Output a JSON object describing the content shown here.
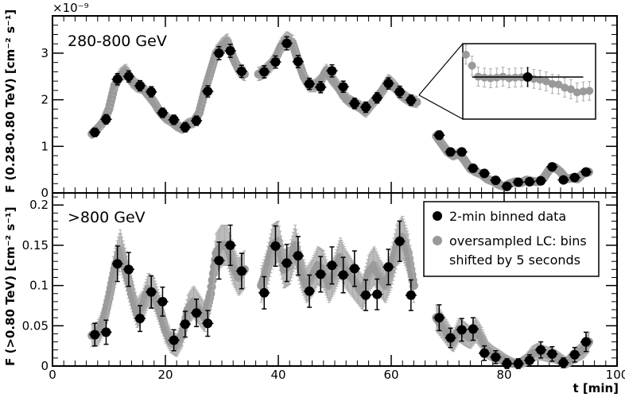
{
  "chart_data": [
    {
      "type": "scatter",
      "panel_label": "280-800 GeV",
      "ylabel": "F (0.28-0.80 TeV) [cm⁻² s⁻¹]",
      "multiplier": "×10⁻⁹",
      "xlim": [
        0,
        100
      ],
      "ylim": [
        0,
        3.8
      ],
      "yticks": [
        0,
        1,
        2,
        3
      ],
      "ytick_labels": [
        "0",
        "1",
        "2",
        "3"
      ],
      "binned": {
        "name": "2-min binned data",
        "x": [
          7.5,
          9.5,
          11.5,
          13.5,
          15.5,
          17.5,
          19.5,
          21.5,
          23.5,
          25.5,
          27.5,
          29.5,
          31.5,
          33.5,
          37.5,
          39.5,
          41.5,
          43.5,
          45.5,
          47.5,
          49.5,
          51.5,
          53.5,
          55.5,
          57.5,
          59.5,
          61.5,
          63.5,
          68.5,
          70.5,
          72.5,
          74.5,
          76.5,
          78.5,
          80.5,
          82.5,
          84.5,
          86.5,
          88.5,
          90.5,
          92.5,
          94.5
        ],
        "y": [
          1.3,
          1.58,
          2.44,
          2.5,
          2.3,
          2.17,
          1.72,
          1.57,
          1.41,
          1.55,
          2.18,
          3.0,
          3.05,
          2.61,
          2.6,
          2.81,
          3.21,
          2.82,
          2.34,
          2.27,
          2.62,
          2.28,
          1.92,
          1.84,
          2.04,
          2.35,
          2.17,
          1.99,
          1.24,
          0.88,
          0.88,
          0.53,
          0.42,
          0.27,
          0.14,
          0.23,
          0.24,
          0.26,
          0.56,
          0.28,
          0.33,
          0.45
        ],
        "err": [
          0.09,
          0.1,
          0.12,
          0.12,
          0.11,
          0.11,
          0.1,
          0.1,
          0.1,
          0.1,
          0.12,
          0.14,
          0.14,
          0.13,
          0.13,
          0.13,
          0.14,
          0.13,
          0.12,
          0.12,
          0.13,
          0.12,
          0.11,
          0.11,
          0.11,
          0.12,
          0.12,
          0.11,
          0.09,
          0.08,
          0.08,
          0.07,
          0.06,
          0.05,
          0.04,
          0.05,
          0.05,
          0.05,
          0.07,
          0.05,
          0.06,
          0.06
        ]
      },
      "oversampled": {
        "name": "oversampled LC: bins shifted by 5 seconds",
        "x": [
          7.0,
          8.0,
          9.0,
          10.0,
          11.0,
          12.0,
          13.0,
          14.0,
          15.0,
          16.0,
          17.0,
          18.0,
          19.0,
          20.0,
          21.0,
          22.0,
          23.0,
          24.0,
          25.0,
          26.0,
          27.0,
          28.0,
          29.0,
          30.0,
          31.0,
          32.0,
          33.0,
          34.0,
          36.5,
          37.5,
          38.5,
          39.5,
          40.5,
          41.5,
          42.5,
          43.5,
          44.5,
          45.5,
          46.5,
          47.5,
          48.5,
          49.5,
          50.5,
          51.5,
          52.5,
          53.5,
          54.5,
          55.5,
          56.5,
          57.5,
          58.5,
          59.5,
          60.5,
          61.5,
          62.5,
          63.5,
          64.5,
          68.0,
          69.0,
          70.0,
          71.0,
          72.0,
          73.0,
          74.0,
          75.0,
          76.0,
          77.0,
          78.0,
          79.0,
          80.0,
          81.0,
          82.0,
          83.0,
          84.0,
          85.0,
          86.0,
          87.0,
          88.0,
          89.0,
          90.0,
          91.0,
          92.0,
          93.0,
          94.0,
          95.0
        ],
        "y": [
          1.27,
          1.38,
          1.52,
          1.8,
          2.3,
          2.52,
          2.62,
          2.4,
          2.3,
          2.25,
          2.1,
          1.95,
          1.75,
          1.62,
          1.55,
          1.45,
          1.38,
          1.48,
          1.52,
          1.72,
          2.2,
          2.6,
          3.0,
          3.15,
          3.25,
          2.9,
          2.65,
          2.55,
          2.55,
          2.6,
          2.72,
          2.88,
          3.15,
          3.3,
          3.22,
          2.85,
          2.5,
          2.3,
          2.3,
          2.4,
          2.62,
          2.45,
          2.3,
          2.1,
          1.98,
          1.92,
          1.85,
          1.75,
          1.9,
          2.05,
          2.2,
          2.4,
          2.3,
          2.15,
          2.05,
          1.98,
          1.95,
          1.22,
          1.05,
          0.88,
          0.8,
          0.85,
          0.7,
          0.52,
          0.45,
          0.4,
          0.3,
          0.25,
          0.18,
          0.14,
          0.2,
          0.24,
          0.22,
          0.28,
          0.25,
          0.24,
          0.32,
          0.5,
          0.55,
          0.45,
          0.3,
          0.32,
          0.3,
          0.42,
          0.45
        ],
        "err": [
          0.1,
          0.1,
          0.11,
          0.12,
          0.13,
          0.14,
          0.14,
          0.13,
          0.13,
          0.12,
          0.12,
          0.12,
          0.11,
          0.11,
          0.11,
          0.11,
          0.1,
          0.11,
          0.11,
          0.12,
          0.13,
          0.14,
          0.15,
          0.16,
          0.16,
          0.15,
          0.14,
          0.14,
          0.14,
          0.14,
          0.14,
          0.15,
          0.16,
          0.16,
          0.16,
          0.15,
          0.14,
          0.13,
          0.13,
          0.14,
          0.14,
          0.14,
          0.13,
          0.13,
          0.12,
          0.12,
          0.12,
          0.12,
          0.12,
          0.12,
          0.13,
          0.14,
          0.13,
          0.13,
          0.12,
          0.12,
          0.12,
          0.1,
          0.1,
          0.09,
          0.09,
          0.09,
          0.08,
          0.07,
          0.07,
          0.07,
          0.06,
          0.06,
          0.05,
          0.05,
          0.05,
          0.06,
          0.05,
          0.06,
          0.06,
          0.06,
          0.06,
          0.07,
          0.08,
          0.07,
          0.06,
          0.06,
          0.06,
          0.07,
          0.07
        ]
      },
      "inset": {
        "note": "zoom of oversampled light curve around one 2-min bin",
        "x": [
          -1.0,
          -0.9,
          -0.8,
          -0.7,
          -0.6,
          -0.5,
          -0.4,
          -0.3,
          -0.2,
          -0.1,
          0.0,
          0.1,
          0.2,
          0.3,
          0.4,
          0.5,
          0.6,
          0.7,
          0.8,
          0.9,
          1.0
        ],
        "y": [
          3.35,
          3.0,
          2.65,
          2.62,
          2.6,
          2.62,
          2.65,
          2.6,
          2.62,
          2.63,
          2.64,
          2.58,
          2.55,
          2.5,
          2.42,
          2.4,
          2.3,
          2.25,
          2.15,
          2.18,
          2.2
        ],
        "err": [
          0.3,
          0.3,
          0.3,
          0.3,
          0.3,
          0.3,
          0.3,
          0.3,
          0.3,
          0.3,
          0.3,
          0.3,
          0.3,
          0.3,
          0.3,
          0.3,
          0.3,
          0.3,
          0.3,
          0.3,
          0.3
        ],
        "bin_y": 2.64,
        "bin_err": 0.32,
        "xlim": [
          -1.05,
          1.1
        ],
        "ylim": [
          1.3,
          3.7
        ],
        "source_x": 63.5,
        "source_y": 2.1
      }
    },
    {
      "type": "scatter",
      "panel_label": ">800 GeV",
      "ylabel": "F (>0.80 TeV) [cm⁻² s⁻¹]",
      "xlabel": "t [min]",
      "xlim": [
        0,
        100
      ],
      "ylim": [
        0,
        0.215
      ],
      "xticks": [
        0,
        20,
        40,
        60,
        80,
        100
      ],
      "xtick_labels": [
        "0",
        "20",
        "40",
        "60",
        "80",
        "100"
      ],
      "yticks": [
        0,
        0.05,
        0.1,
        0.15,
        0.2
      ],
      "ytick_labels": [
        "0",
        "0.05",
        "0.1",
        "0.15",
        "0.2"
      ],
      "legend_position": "top-right",
      "binned": {
        "name": "2-min binned data",
        "x": [
          7.5,
          9.5,
          11.5,
          13.5,
          15.5,
          17.5,
          19.5,
          21.5,
          23.5,
          25.5,
          27.5,
          29.5,
          31.5,
          33.5,
          37.5,
          39.5,
          41.5,
          43.5,
          45.5,
          47.5,
          49.5,
          51.5,
          53.5,
          55.5,
          57.5,
          59.5,
          61.5,
          63.5,
          68.5,
          70.5,
          72.5,
          74.5,
          76.5,
          78.5,
          80.5,
          82.5,
          84.5,
          86.5,
          88.5,
          90.5,
          92.5,
          94.5
        ],
        "y": [
          0.039,
          0.042,
          0.127,
          0.12,
          0.059,
          0.092,
          0.08,
          0.032,
          0.052,
          0.066,
          0.053,
          0.131,
          0.15,
          0.118,
          0.091,
          0.149,
          0.128,
          0.137,
          0.093,
          0.114,
          0.125,
          0.113,
          0.121,
          0.088,
          0.089,
          0.123,
          0.155,
          0.088,
          0.06,
          0.035,
          0.045,
          0.046,
          0.016,
          0.011,
          0.003,
          0.003,
          0.007,
          0.02,
          0.015,
          0.004,
          0.014,
          0.03
        ],
        "err": [
          0.014,
          0.015,
          0.022,
          0.021,
          0.016,
          0.02,
          0.018,
          0.013,
          0.016,
          0.017,
          0.016,
          0.023,
          0.025,
          0.022,
          0.02,
          0.025,
          0.023,
          0.024,
          0.02,
          0.022,
          0.023,
          0.022,
          0.022,
          0.019,
          0.019,
          0.022,
          0.025,
          0.019,
          0.016,
          0.012,
          0.014,
          0.014,
          0.009,
          0.008,
          0.006,
          0.006,
          0.007,
          0.01,
          0.009,
          0.006,
          0.009,
          0.012
        ]
      },
      "oversampled": {
        "name": "oversampled LC: bins shifted by 5 seconds",
        "x": [
          7.0,
          8.0,
          9.0,
          10.0,
          11.0,
          12.0,
          13.0,
          14.0,
          15.0,
          16.0,
          17.0,
          18.0,
          19.0,
          20.0,
          21.0,
          22.0,
          23.0,
          24.0,
          25.0,
          26.0,
          27.0,
          28.0,
          29.0,
          30.0,
          31.0,
          32.0,
          33.0,
          34.0,
          37.0,
          38.0,
          39.0,
          40.0,
          41.0,
          42.0,
          43.0,
          44.0,
          45.0,
          46.0,
          47.0,
          48.0,
          49.0,
          50.0,
          51.0,
          52.0,
          53.0,
          54.0,
          55.0,
          56.0,
          57.0,
          58.0,
          59.0,
          60.0,
          61.0,
          62.0,
          63.0,
          64.0,
          68.0,
          69.0,
          70.0,
          71.0,
          72.0,
          73.0,
          74.0,
          75.0,
          76.0,
          77.0,
          78.0,
          79.0,
          80.0,
          81.0,
          82.0,
          83.0,
          84.0,
          85.0,
          86.0,
          87.0,
          88.0,
          89.0,
          90.0,
          91.0,
          92.0,
          93.0,
          94.0,
          95.0
        ],
        "y": [
          0.038,
          0.04,
          0.055,
          0.085,
          0.12,
          0.145,
          0.12,
          0.09,
          0.065,
          0.075,
          0.095,
          0.09,
          0.07,
          0.045,
          0.03,
          0.025,
          0.04,
          0.07,
          0.08,
          0.07,
          0.06,
          0.09,
          0.14,
          0.15,
          0.15,
          0.125,
          0.11,
          0.12,
          0.1,
          0.12,
          0.15,
          0.155,
          0.12,
          0.125,
          0.15,
          0.12,
          0.1,
          0.11,
          0.125,
          0.12,
          0.1,
          0.115,
          0.135,
          0.12,
          0.11,
          0.1,
          0.09,
          0.115,
          0.125,
          0.11,
          0.1,
          0.12,
          0.15,
          0.16,
          0.14,
          0.1,
          0.06,
          0.05,
          0.04,
          0.03,
          0.045,
          0.04,
          0.035,
          0.045,
          0.035,
          0.02,
          0.015,
          0.012,
          0.008,
          0.005,
          0.003,
          0.004,
          0.008,
          0.015,
          0.018,
          0.016,
          0.014,
          0.012,
          0.008,
          0.004,
          0.01,
          0.015,
          0.02,
          0.03
        ],
        "err": [
          0.014,
          0.015,
          0.016,
          0.019,
          0.022,
          0.024,
          0.022,
          0.019,
          0.017,
          0.018,
          0.02,
          0.019,
          0.018,
          0.015,
          0.013,
          0.013,
          0.015,
          0.018,
          0.019,
          0.018,
          0.017,
          0.02,
          0.024,
          0.025,
          0.025,
          0.023,
          0.022,
          0.023,
          0.021,
          0.023,
          0.025,
          0.025,
          0.023,
          0.023,
          0.025,
          0.023,
          0.021,
          0.022,
          0.023,
          0.023,
          0.021,
          0.022,
          0.024,
          0.023,
          0.022,
          0.021,
          0.02,
          0.022,
          0.023,
          0.022,
          0.021,
          0.023,
          0.025,
          0.026,
          0.024,
          0.021,
          0.016,
          0.015,
          0.014,
          0.012,
          0.014,
          0.014,
          0.013,
          0.014,
          0.013,
          0.01,
          0.009,
          0.008,
          0.007,
          0.006,
          0.005,
          0.006,
          0.007,
          0.009,
          0.01,
          0.009,
          0.009,
          0.008,
          0.007,
          0.006,
          0.008,
          0.009,
          0.01,
          0.012
        ]
      },
      "legend": [
        "2-min binned data",
        "oversampled LC: bins",
        "shifted by 5 seconds"
      ]
    }
  ]
}
